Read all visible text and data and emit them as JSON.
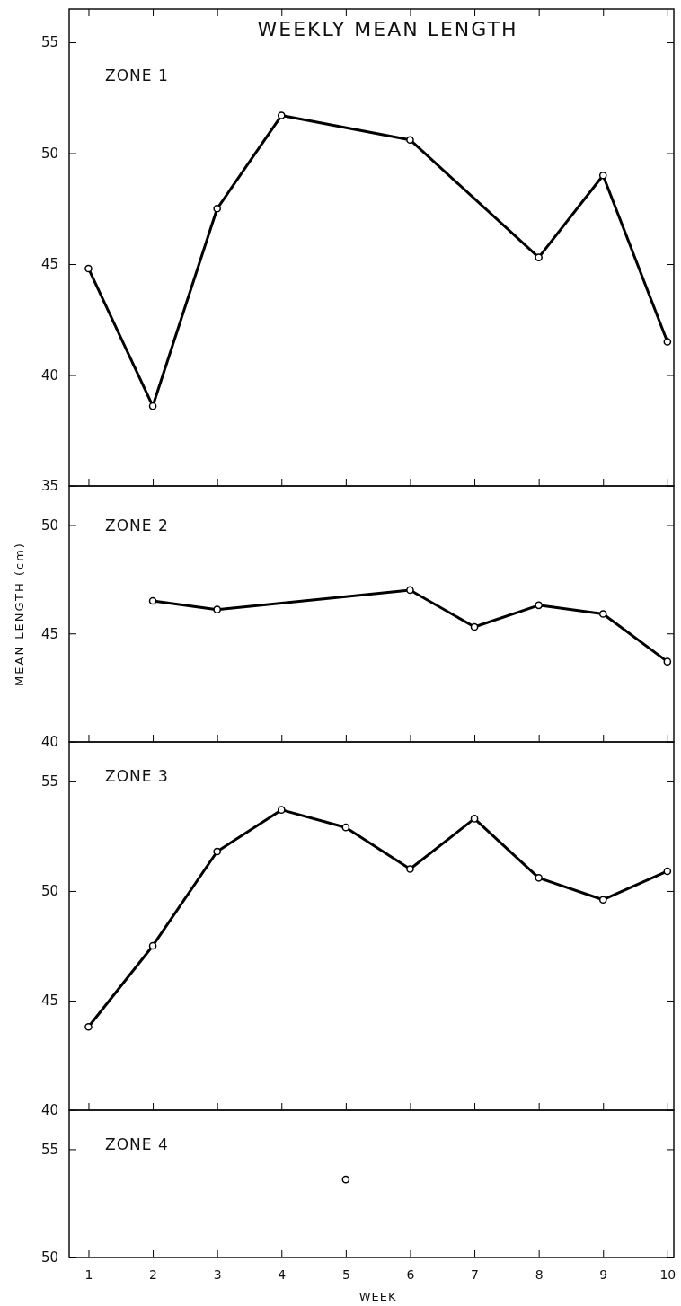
{
  "chart_data": [
    {
      "type": "line",
      "title": "WEEKLY MEAN LENGTH",
      "annotations": [
        "ZONE 1"
      ],
      "x": [
        1,
        2,
        3,
        4,
        6,
        8,
        9,
        10
      ],
      "xlim": [
        0.7,
        10.1
      ],
      "xticks": [
        1,
        2,
        3,
        4,
        5,
        6,
        7,
        8,
        9,
        10
      ],
      "ylim": [
        35,
        56.5
      ],
      "yticks": [
        35,
        40,
        45,
        50,
        55
      ],
      "tick_labels": "y",
      "marker": "circle",
      "line_style": "solid",
      "series": [
        {
          "color": "#000000",
          "values": [
            44.8,
            38.6,
            47.5,
            51.7,
            50.6,
            45.3,
            49.0,
            41.5
          ]
        }
      ]
    },
    {
      "type": "line",
      "ylabel": "MEAN LENGTH (cm)",
      "annotations": [
        "ZONE 2"
      ],
      "x": [
        2,
        3,
        6,
        7,
        8,
        9,
        10
      ],
      "xlim": [
        0.7,
        10.1
      ],
      "xticks": [
        1,
        2,
        3,
        4,
        5,
        6,
        7,
        8,
        9,
        10
      ],
      "ylim": [
        40,
        51.8
      ],
      "yticks": [
        40,
        45,
        50
      ],
      "tick_labels": "y",
      "marker": "circle",
      "line_style": "solid",
      "series": [
        {
          "color": "#000000",
          "values": [
            46.5,
            46.1,
            47.0,
            45.3,
            46.3,
            45.9,
            43.7
          ]
        }
      ]
    },
    {
      "type": "line",
      "annotations": [
        "ZONE 3"
      ],
      "x": [
        1,
        2,
        3,
        4,
        5,
        6,
        7,
        8,
        9,
        10
      ],
      "xlim": [
        0.7,
        10.1
      ],
      "xticks": [
        1,
        2,
        3,
        4,
        5,
        6,
        7,
        8,
        9,
        10
      ],
      "ylim": [
        40,
        56.8
      ],
      "yticks": [
        40,
        45,
        50,
        55
      ],
      "tick_labels": "y",
      "marker": "circle",
      "line_style": "solid",
      "series": [
        {
          "color": "#000000",
          "values": [
            43.8,
            47.5,
            51.8,
            53.7,
            52.9,
            51.0,
            53.3,
            50.6,
            49.6,
            50.9
          ]
        }
      ]
    },
    {
      "type": "scatter",
      "xlabel": "WEEK",
      "annotations": [
        "ZONE 4"
      ],
      "x": [
        5
      ],
      "xlim": [
        0.7,
        10.1
      ],
      "xticks": [
        1,
        2,
        3,
        4,
        5,
        6,
        7,
        8,
        9,
        10
      ],
      "ylim": [
        50,
        56.8
      ],
      "yticks": [
        50,
        55
      ],
      "marker": "circle",
      "series": [
        {
          "color": "#000000",
          "values": [
            53.6
          ]
        }
      ]
    }
  ]
}
